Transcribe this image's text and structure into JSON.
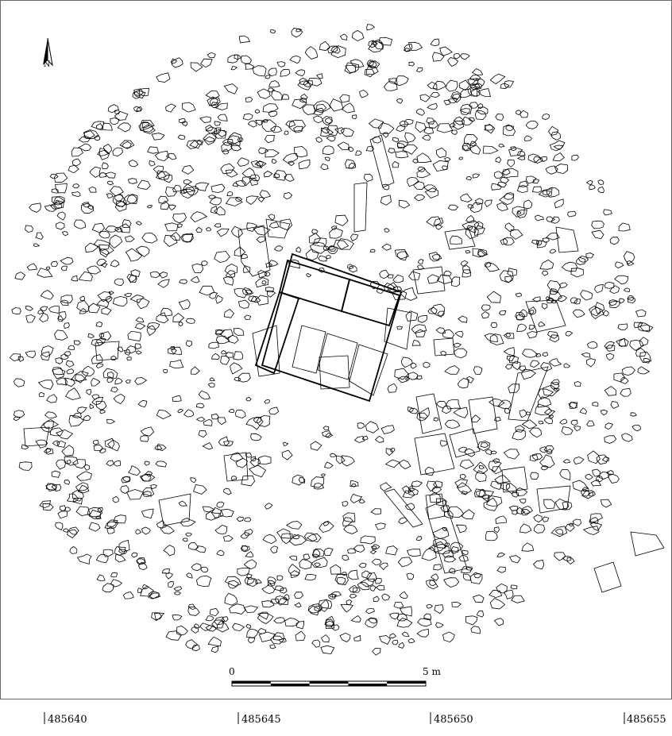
{
  "north_arrow": {
    "label": "N"
  },
  "scale_bar": {
    "start_label": "0",
    "end_label": "5 m",
    "segments": 5
  },
  "easting_labels": [
    {
      "label": "485640"
    },
    {
      "label": "485645"
    },
    {
      "label": "485650"
    },
    {
      "label": "485655"
    }
  ],
  "colors": {
    "ink": "#000000",
    "background": "#ffffff",
    "frame": "#444444"
  }
}
